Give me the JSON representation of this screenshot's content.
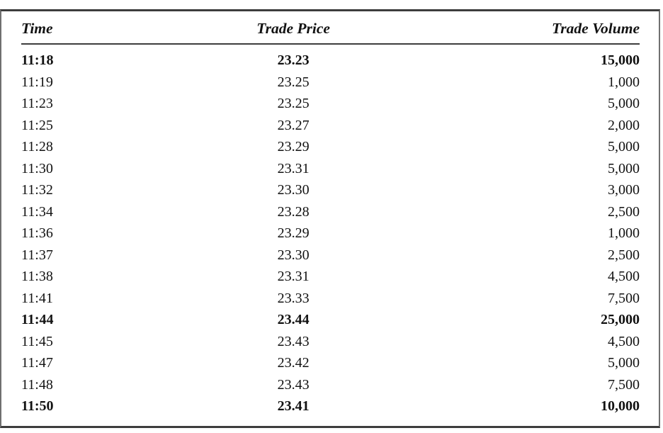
{
  "colors": {
    "background": "#ffffff",
    "text": "#121212",
    "rule_dark": "#3d3d3d",
    "rule_side": "#707070"
  },
  "table": {
    "columns": [
      {
        "key": "time",
        "label": "Time",
        "align": "left"
      },
      {
        "key": "price",
        "label": "Trade Price",
        "align": "center"
      },
      {
        "key": "volume",
        "label": "Trade Volume",
        "align": "right"
      }
    ],
    "rows": [
      {
        "time": "11:18",
        "price": "23.23",
        "volume": "15,000",
        "bold": true
      },
      {
        "time": "11:19",
        "price": "23.25",
        "volume": "1,000",
        "bold": false
      },
      {
        "time": "11:23",
        "price": "23.25",
        "volume": "5,000",
        "bold": false
      },
      {
        "time": "11:25",
        "price": "23.27",
        "volume": "2,000",
        "bold": false
      },
      {
        "time": "11:28",
        "price": "23.29",
        "volume": "5,000",
        "bold": false
      },
      {
        "time": "11:30",
        "price": "23.31",
        "volume": "5,000",
        "bold": false
      },
      {
        "time": "11:32",
        "price": "23.30",
        "volume": "3,000",
        "bold": false
      },
      {
        "time": "11:34",
        "price": "23.28",
        "volume": "2,500",
        "bold": false
      },
      {
        "time": "11:36",
        "price": "23.29",
        "volume": "1,000",
        "bold": false
      },
      {
        "time": "11:37",
        "price": "23.30",
        "volume": "2,500",
        "bold": false
      },
      {
        "time": "11:38",
        "price": "23.31",
        "volume": "4,500",
        "bold": false
      },
      {
        "time": "11:41",
        "price": "23.33",
        "volume": "7,500",
        "bold": false
      },
      {
        "time": "11:44",
        "price": "23.44",
        "volume": "25,000",
        "bold": true
      },
      {
        "time": "11:45",
        "price": "23.43",
        "volume": "4,500",
        "bold": false
      },
      {
        "time": "11:47",
        "price": "23.42",
        "volume": "5,000",
        "bold": false
      },
      {
        "time": "11:48",
        "price": "23.43",
        "volume": "7,500",
        "bold": false
      },
      {
        "time": "11:50",
        "price": "23.41",
        "volume": "10,000",
        "bold": true
      }
    ]
  }
}
